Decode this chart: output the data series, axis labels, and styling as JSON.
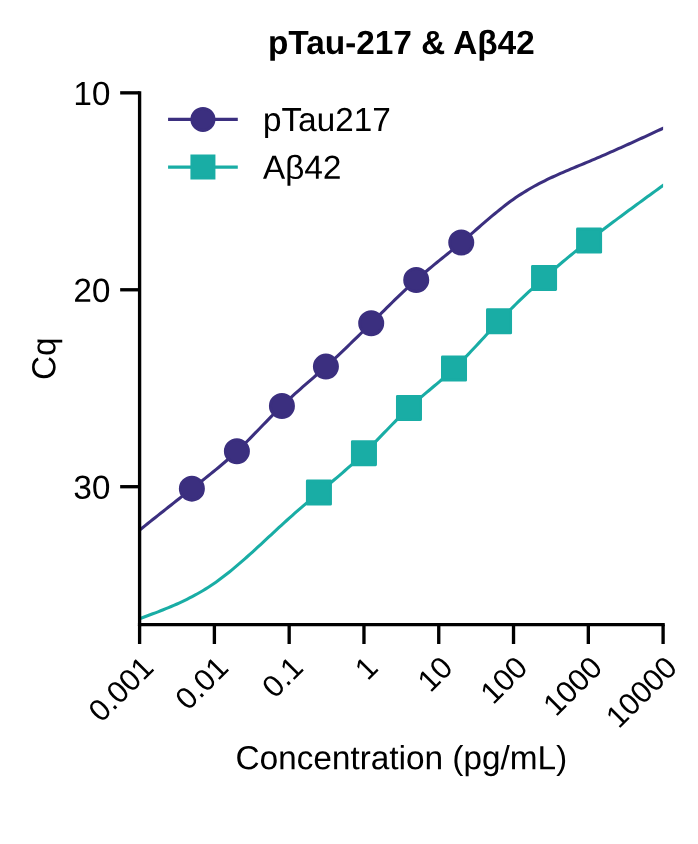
{
  "chart_data": {
    "type": "scatter",
    "title": "pTau-217 & Aβ42",
    "xlabel": "Concentration (pg/mL)",
    "ylabel": "Cq",
    "log": "x",
    "xlim": [
      0.001,
      10000
    ],
    "xticks": [
      0.001,
      0.01,
      0.1,
      1,
      10,
      100,
      1000,
      10000
    ],
    "ylim": [
      37,
      10
    ],
    "yticks": [
      10,
      20,
      30
    ],
    "grid": false,
    "legend": "top left",
    "series": [
      {
        "name": "pTau217",
        "marker": "circle",
        "color": "#3b2f7f",
        "x": [
          0.005,
          0.02,
          0.08,
          0.31,
          1.25,
          5,
          20
        ],
        "values": [
          30.1,
          28.2,
          25.9,
          23.9,
          21.7,
          19.5,
          17.6
        ]
      },
      {
        "name": "Aβ42",
        "marker": "square",
        "color": "#19ada5",
        "x": [
          0.25,
          1,
          4,
          16,
          64,
          256,
          1024
        ],
        "values": [
          30.3,
          28.3,
          26.0,
          24.0,
          21.6,
          19.4,
          17.5
        ]
      },
      {
        "type": "line",
        "color": "#3b2f7f",
        "x": [
          0.001,
          0.005,
          0.02,
          0.08,
          0.31,
          1.25,
          5,
          20,
          100,
          1000,
          10000
        ],
        "values": [
          32.2,
          30.1,
          28.2,
          25.9,
          23.9,
          21.7,
          19.5,
          17.6,
          15.4,
          13.5,
          11.8
        ]
      },
      {
        "type": "line",
        "color": "#19ada5",
        "x": [
          0.001,
          0.01,
          0.1,
          0.25,
          1,
          4,
          16,
          64,
          256,
          1024,
          10000
        ],
        "values": [
          36.7,
          34.9,
          31.6,
          30.3,
          28.3,
          26.0,
          24.0,
          21.6,
          19.4,
          17.5,
          14.7
        ]
      }
    ]
  }
}
